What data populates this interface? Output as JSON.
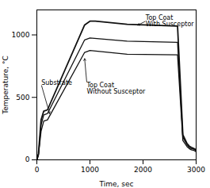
{
  "chart_data": {
    "type": "line",
    "xlabel": "Time, sec",
    "ylabel": "Temperature, °C",
    "xlim": [
      0,
      3000
    ],
    "ylim": [
      0,
      1200
    ],
    "xticks": [
      0,
      1000,
      2000,
      3000
    ],
    "yticks": [
      0,
      500,
      1000
    ],
    "grid": false,
    "series": [
      {
        "color": "#111111",
        "x": [
          0,
          30,
          80,
          130,
          200,
          900,
          1000,
          1100,
          1700,
          2650,
          2750,
          2830,
          2870,
          2910,
          2960,
          3000
        ],
        "values": [
          0,
          50,
          320,
          390,
          400,
          1080,
          1110,
          1110,
          1085,
          1070,
          200,
          130,
          110,
          100,
          90,
          80
        ]
      },
      {
        "color": "#111111",
        "x": [
          0,
          30,
          80,
          130,
          200,
          900,
          1000,
          1700,
          2650,
          2750,
          2830,
          2870,
          2910,
          2960,
          3000
        ],
        "values": [
          0,
          40,
          280,
          360,
          370,
          960,
          975,
          950,
          940,
          180,
          120,
          100,
          90,
          85,
          75
        ]
      },
      {
        "color": "#111111",
        "x": [
          0,
          30,
          80,
          130,
          200,
          900,
          1000,
          1700,
          2650,
          2750,
          2830,
          2870,
          2910,
          2960,
          3000
        ],
        "values": [
          0,
          35,
          230,
          310,
          320,
          860,
          875,
          845,
          840,
          155,
          105,
          90,
          80,
          75,
          65
        ]
      }
    ],
    "annotations": [
      {
        "text": "Substrate",
        "xy": [
          240,
          370
        ],
        "xytext": [
          85,
          600
        ]
      },
      {
        "text": "Top Coat\nWith Susceptor",
        "xy": [
          1900,
          1078
        ],
        "xytext": [
          2050,
          1110
        ]
      },
      {
        "text": "Top Coat\nWithout Susceptor",
        "xy": [
          900,
          810
        ],
        "xytext": [
          940,
          620
        ]
      }
    ]
  }
}
